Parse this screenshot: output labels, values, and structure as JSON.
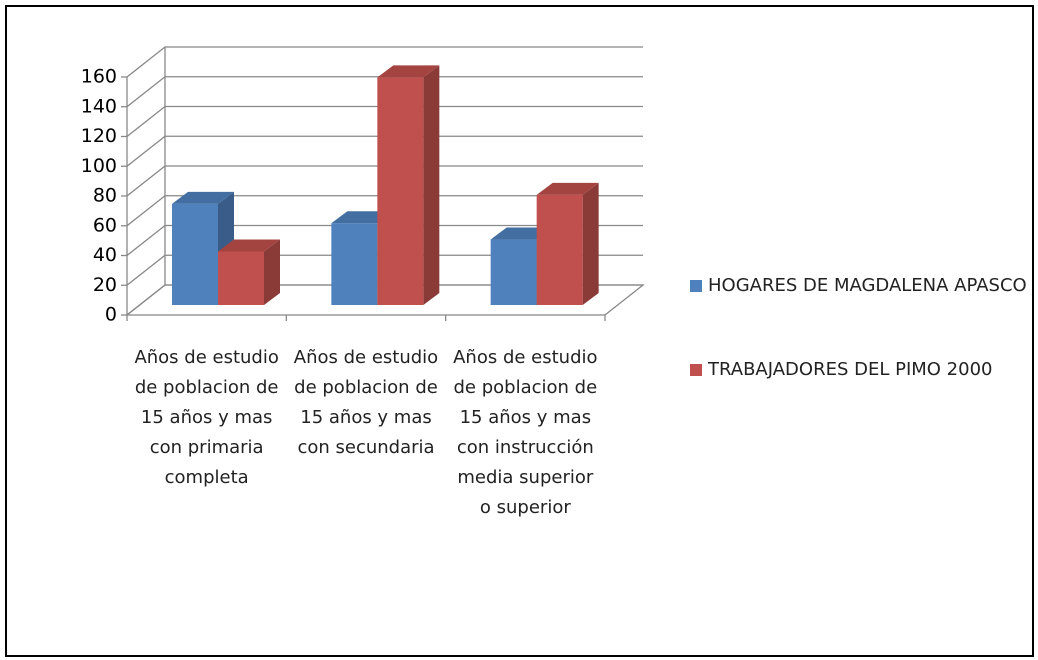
{
  "chart_data": {
    "type": "bar3d",
    "categories": [
      "Años de estudio de poblacion de 15 años y mas con primaria completa",
      "Años de estudio de poblacion de 15 años y mas con secundaria",
      "Años de estudio de poblacion de 15 años y mas con instrucción media superior o superior"
    ],
    "series": [
      {
        "name": "HOGARES DE MAGDALENA APASCO",
        "color": "#4f81bd",
        "values": [
          68,
          55,
          44
        ]
      },
      {
        "name": "TRABAJADORES DEL PIMO 2000",
        "color": "#c0504d",
        "values": [
          36,
          153,
          74
        ]
      }
    ],
    "ylim": [
      0,
      160
    ],
    "yticks": [
      0,
      20,
      40,
      60,
      80,
      100,
      120,
      140,
      160
    ],
    "grid": true,
    "legend": "right"
  }
}
